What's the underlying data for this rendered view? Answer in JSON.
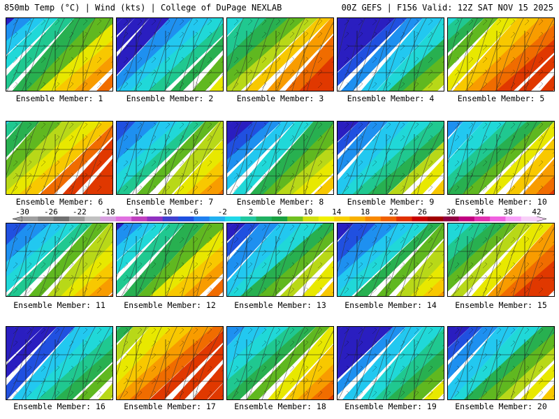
{
  "header": {
    "left_title": "850mb Temp (°C) | Wind (kts) | College of DuPage NEXLAB",
    "right_title": "00Z GEFS | F156 Valid: 12Z SAT NOV 15 2025"
  },
  "panels": [
    {
      "label": "Ensemble Member: 1",
      "warmth": 0.55,
      "front": 0.45
    },
    {
      "label": "Ensemble Member: 2",
      "warmth": 0.35,
      "front": 0.6
    },
    {
      "label": "Ensemble Member: 3",
      "warmth": 0.7,
      "front": 0.45
    },
    {
      "label": "Ensemble Member: 4",
      "warmth": 0.3,
      "front": 0.6
    },
    {
      "label": "Ensemble Member: 5",
      "warmth": 0.75,
      "front": 0.3
    },
    {
      "label": "Ensemble Member: 6",
      "warmth": 0.75,
      "front": 0.4
    },
    {
      "label": "Ensemble Member: 7",
      "warmth": 0.5,
      "front": 0.5
    },
    {
      "label": "Ensemble Member: 8",
      "warmth": 0.45,
      "front": 0.55
    },
    {
      "label": "Ensemble Member: 9",
      "warmth": 0.45,
      "front": 0.65
    },
    {
      "label": "Ensemble Member: 10",
      "warmth": 0.55,
      "front": 0.45
    },
    {
      "label": "Ensemble Member: 11",
      "warmth": 0.5,
      "front": 0.5
    },
    {
      "label": "Ensemble Member: 12",
      "warmth": 0.55,
      "front": 0.45
    },
    {
      "label": "Ensemble Member: 13",
      "warmth": 0.45,
      "front": 0.55
    },
    {
      "label": "Ensemble Member: 14",
      "warmth": 0.45,
      "front": 0.55
    },
    {
      "label": "Ensemble Member: 15",
      "warmth": 0.65,
      "front": 0.3
    },
    {
      "label": "Ensemble Member: 16",
      "warmth": 0.35,
      "front": 0.65
    },
    {
      "label": "Ensemble Member: 17",
      "warmth": 0.85,
      "front": 0.3
    },
    {
      "label": "Ensemble Member: 18",
      "warmth": 0.55,
      "front": 0.45
    },
    {
      "label": "Ensemble Member: 19",
      "warmth": 0.35,
      "front": 0.6
    },
    {
      "label": "Ensemble Member: 20",
      "warmth": 0.5,
      "front": 0.7
    }
  ],
  "colorbar": {
    "ticks": [
      "-30",
      "-26",
      "-22",
      "-18",
      "-14",
      "-10",
      "-6",
      "-2",
      "2",
      "6",
      "10",
      "14",
      "18",
      "22",
      "26",
      "30",
      "34",
      "38",
      "42"
    ],
    "colors": [
      "#a0a0a0",
      "#888888",
      "#707070",
      "#9a9a9a",
      "#c0c0c0",
      "#d8a0e0",
      "#e070e0",
      "#c040c0",
      "#9030c0",
      "#4040d0",
      "#1e50e0",
      "#2080f0",
      "#20b0f0",
      "#20d8e8",
      "#20c8a0",
      "#20b060",
      "#18a040",
      "#70c020",
      "#d0e010",
      "#f0f000",
      "#f8d000",
      "#f8b000",
      "#f88800",
      "#f06000",
      "#e03000",
      "#c80000",
      "#a00000",
      "#900040",
      "#c00080",
      "#e030b0",
      "#f060e0",
      "#f8a0f8",
      "#f8d0f8"
    ]
  }
}
